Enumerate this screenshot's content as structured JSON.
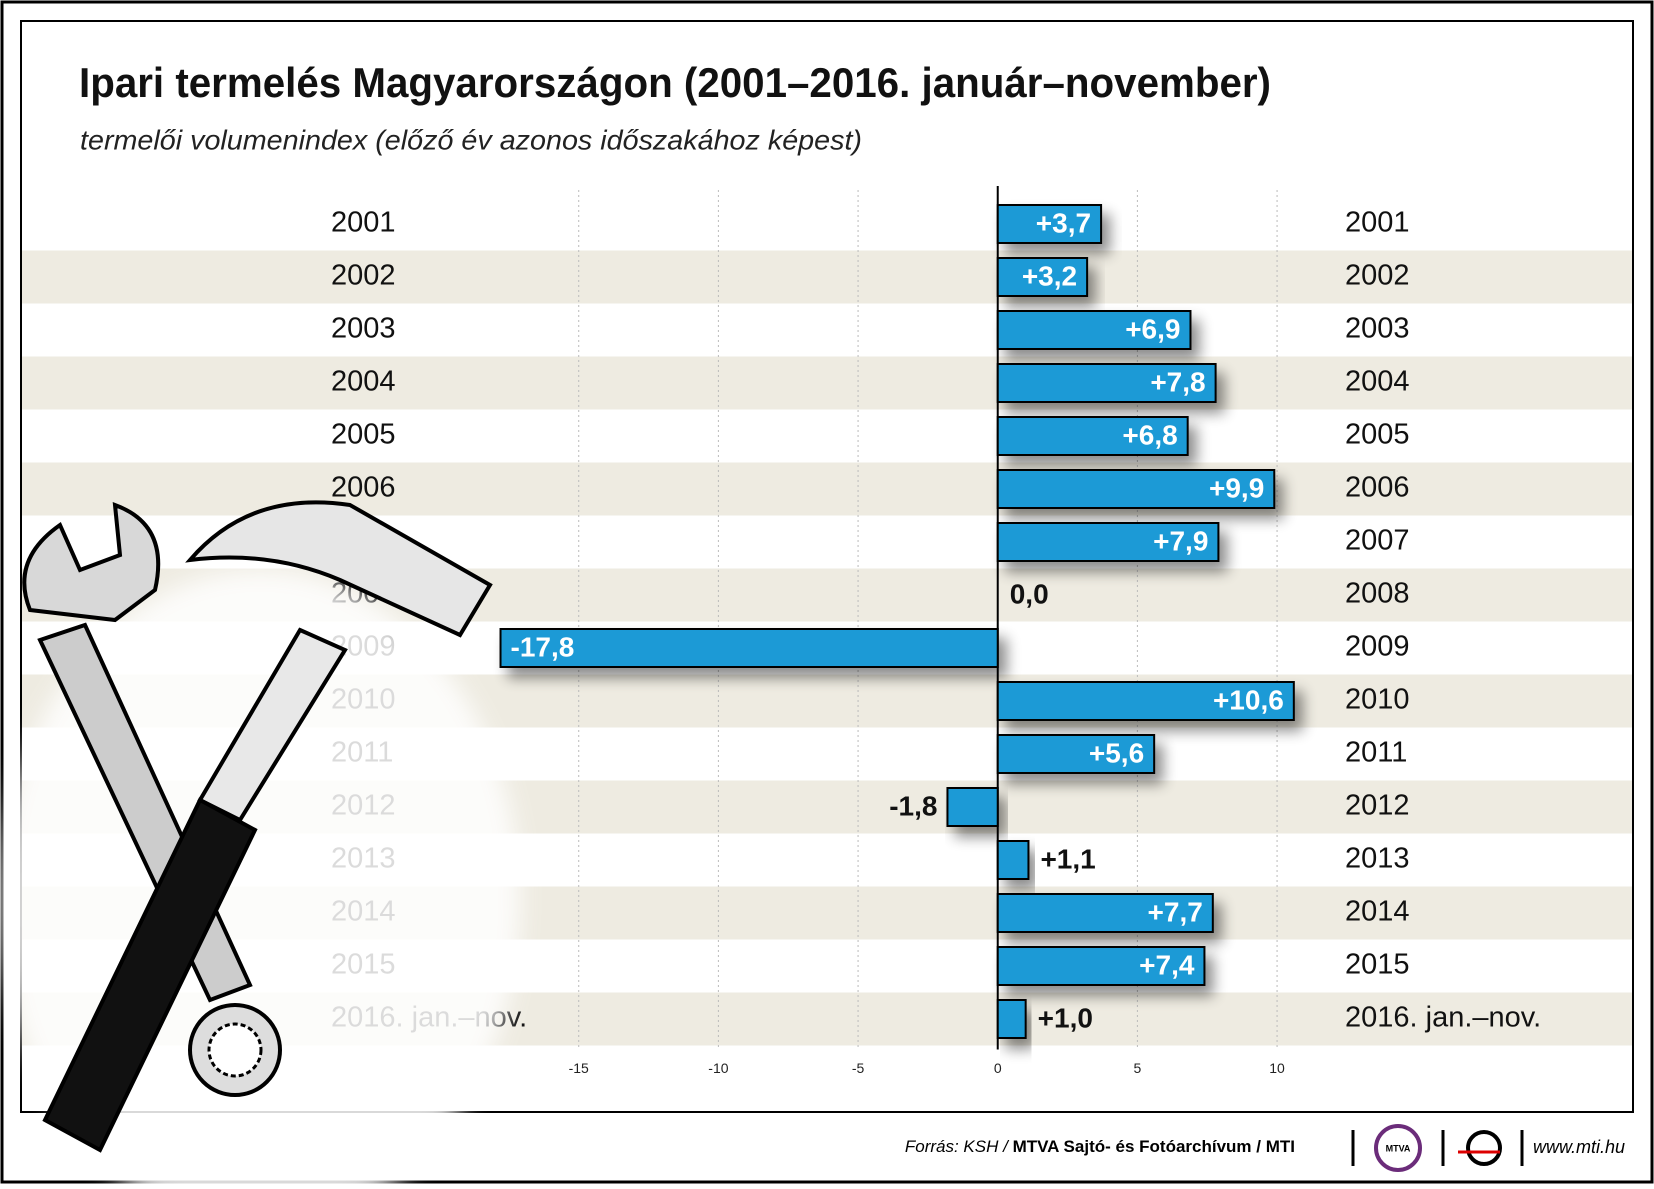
{
  "chart_data": {
    "type": "bar",
    "orientation": "horizontal",
    "title": "Ipari termelés Magyarországon (2001–2016. január–november)",
    "subtitle": "termelői volumenindex (előző év azonos időszakához képest)",
    "categories": [
      "2001",
      "2002",
      "2003",
      "2004",
      "2005",
      "2006",
      "2007",
      "2008",
      "2009",
      "2010",
      "2011",
      "2012",
      "2013",
      "2014",
      "2015",
      "2016. jan.–nov."
    ],
    "values": [
      3.7,
      3.2,
      6.9,
      7.8,
      6.8,
      9.9,
      7.9,
      0.0,
      -17.8,
      10.6,
      5.6,
      -1.8,
      1.1,
      7.7,
      7.4,
      1.0
    ],
    "value_labels": [
      "+3,7",
      "+3,2",
      "+6,9",
      "+7,8",
      "+6,8",
      "+9,9",
      "+7,9",
      "0,0",
      "-17,8",
      "+10,6",
      "+5,6",
      "-1,8",
      "+1,1",
      "+7,7",
      "+7,4",
      "+1,0"
    ],
    "color": "#1a9ad6",
    "xlim": [
      -19,
      11
    ],
    "xticks": [
      -15,
      -10,
      -5,
      0,
      5,
      10
    ],
    "grid": true,
    "source": "Forrás: KSH /",
    "source_bold": "MTVA Sajtó- és Fotóarchívum",
    "source_end": "/ MTI",
    "logo": "MTVA",
    "website": "www.mti.hu"
  }
}
